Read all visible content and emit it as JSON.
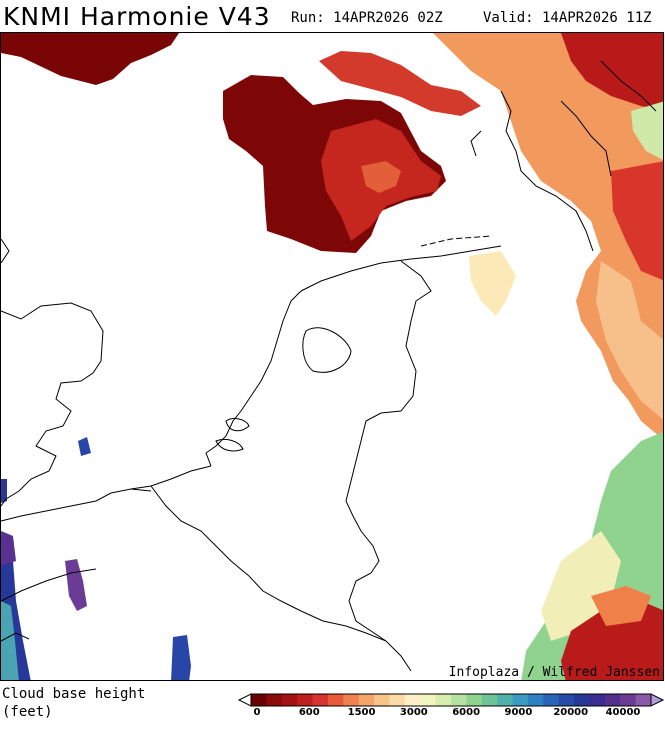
{
  "header": {
    "title": "KNMI Harmonie V43",
    "run": "Run: 14APR2026 02Z",
    "valid": "Valid: 14APR2026 11Z"
  },
  "map": {
    "credit": "Infoplaza / Wilfred Janssen",
    "region": "Netherlands, Belgium and surrounding North Sea",
    "parameter": "cloud-base-height"
  },
  "legend": {
    "label_line1": "Cloud base height",
    "label_line2": "(feet)",
    "tick_labels": [
      "0",
      "600",
      "1500",
      "3000",
      "6000",
      "9000",
      "20000",
      "40000"
    ],
    "colors": [
      "#6b0000",
      "#8b0a0a",
      "#a51212",
      "#bf1e1e",
      "#d83333",
      "#e85a3a",
      "#f08050",
      "#f5a468",
      "#f8c488",
      "#fbdca8",
      "#fdf0c8",
      "#f2f5c0",
      "#d8eeb0",
      "#b4e2a0",
      "#8ed48c",
      "#6cc494",
      "#4eb2a8",
      "#3a9cc0",
      "#2e80c4",
      "#2864b8",
      "#244ca8",
      "#283898",
      "#3a2c90",
      "#52308c",
      "#6a3c96",
      "#8a5aa8"
    ]
  }
}
